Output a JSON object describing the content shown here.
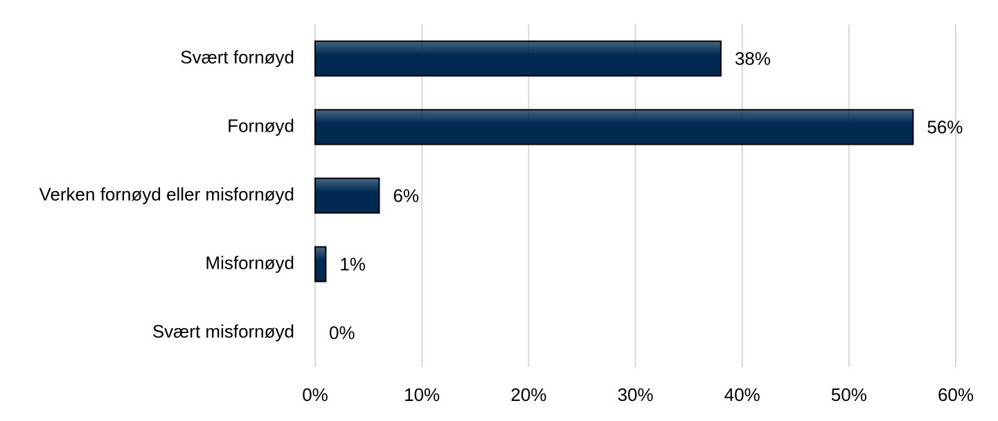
{
  "chart_data": {
    "type": "bar",
    "orientation": "horizontal",
    "categories": [
      "Svært fornøyd",
      "Fornøyd",
      "Verken fornøyd eller misfornøyd",
      "Misfornøyd",
      "Svært misfornøyd"
    ],
    "values": [
      38,
      56,
      6,
      1,
      0
    ],
    "value_labels": [
      "38%",
      "56%",
      "6%",
      "1%",
      "0%"
    ],
    "color": "#002a52",
    "xlim": [
      0,
      60
    ],
    "xticks": [
      {
        "value": 0,
        "label": "0%"
      },
      {
        "value": 10,
        "label": "10%"
      },
      {
        "value": 20,
        "label": "20%"
      },
      {
        "value": 30,
        "label": "30%"
      },
      {
        "value": 40,
        "label": "40%"
      },
      {
        "value": 50,
        "label": "50%"
      },
      {
        "value": 60,
        "label": "60%"
      }
    ],
    "grid": true
  }
}
